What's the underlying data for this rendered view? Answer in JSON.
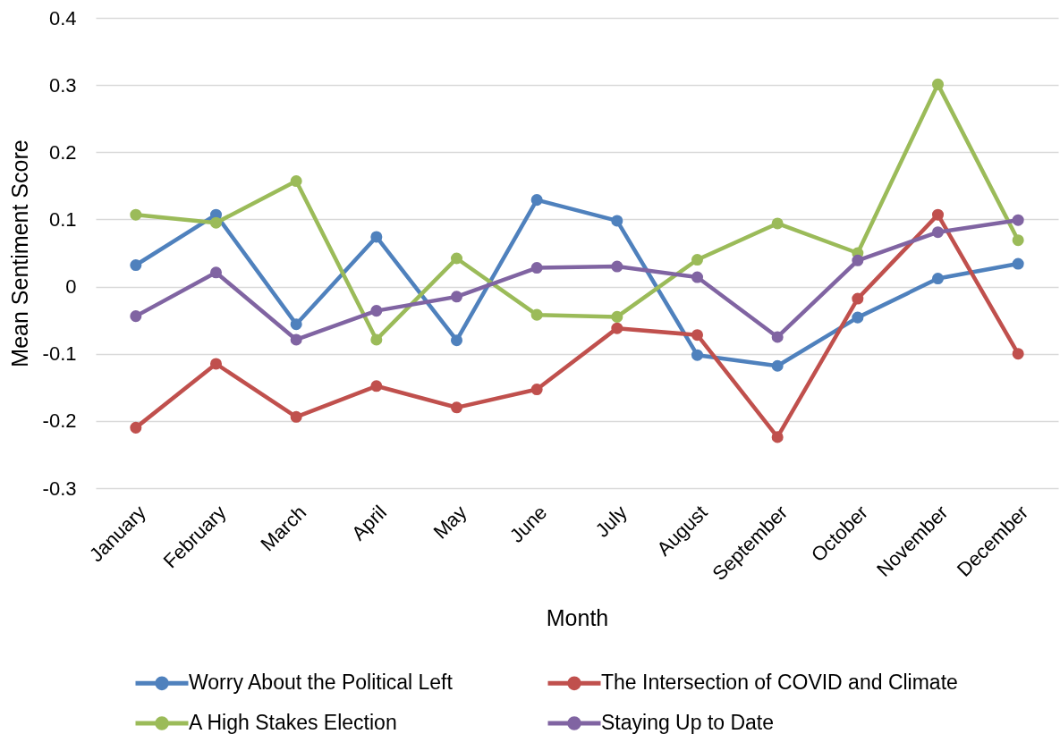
{
  "chart_data": {
    "type": "line",
    "xlabel": "Month",
    "ylabel": "Mean Sentiment Score",
    "categories": [
      "January",
      "February",
      "March",
      "April",
      "May",
      "June",
      "July",
      "August",
      "September",
      "October",
      "November",
      "December"
    ],
    "series": [
      {
        "name": "Worry About the Political Left",
        "color": "#4f81bd",
        "values": [
          0.032,
          0.107,
          -0.056,
          0.074,
          -0.08,
          0.129,
          0.098,
          -0.102,
          -0.118,
          -0.046,
          0.012,
          0.034
        ]
      },
      {
        "name": "The Intersection of COVID and Climate",
        "color": "#c0504d",
        "values": [
          -0.21,
          -0.115,
          -0.194,
          -0.148,
          -0.18,
          -0.153,
          -0.062,
          -0.072,
          -0.224,
          -0.018,
          0.107,
          -0.1
        ]
      },
      {
        "name": "A High Stakes Election",
        "color": "#9bbb59",
        "values": [
          0.107,
          0.095,
          0.157,
          -0.079,
          0.042,
          -0.042,
          -0.045,
          0.04,
          0.094,
          0.05,
          0.301,
          0.069
        ]
      },
      {
        "name": "Staying Up to Date",
        "color": "#8064a2",
        "values": [
          -0.044,
          0.021,
          -0.079,
          -0.036,
          -0.015,
          0.028,
          0.03,
          0.014,
          -0.075,
          0.039,
          0.081,
          0.099
        ]
      }
    ],
    "ylim": [
      -0.3,
      0.4
    ],
    "yticks": [
      -0.3,
      -0.2,
      -0.1,
      0,
      0.1,
      0.2,
      0.3,
      0.4
    ],
    "grid": "y",
    "legend": "bottom",
    "marker": "circle",
    "line_style": "solid"
  }
}
